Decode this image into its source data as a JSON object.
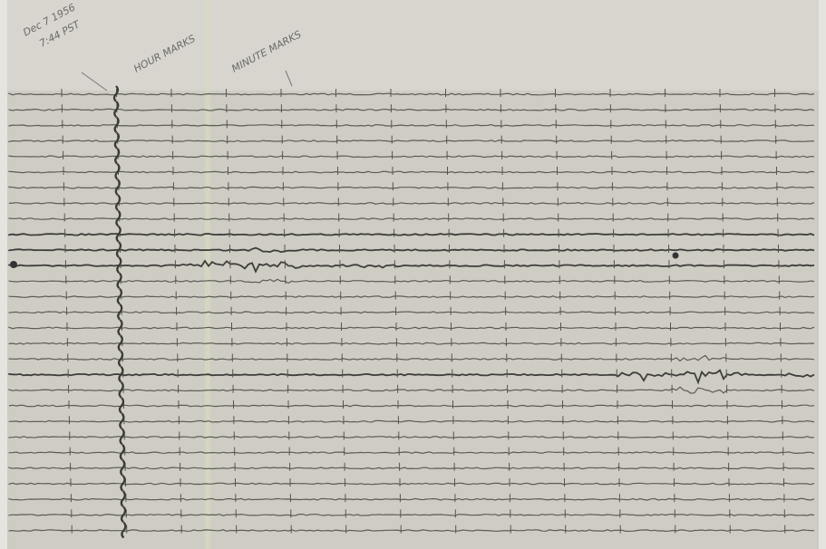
{
  "annotations": {
    "date": "Dec 7 1956",
    "time": "7:44 PST",
    "hour_marks": "HOUR MARKS",
    "minute_marks": "MINUTE MARKS"
  }
}
